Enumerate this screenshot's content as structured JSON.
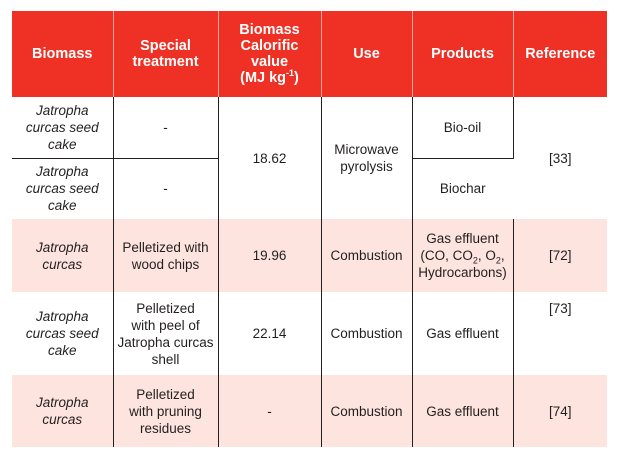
{
  "table": {
    "headers": {
      "biomass": "Biomass",
      "treatment_line1": "Special",
      "treatment_line2": "treatment",
      "cal_line1": "Biomass",
      "cal_line2": "Calorific",
      "cal_line3": "value",
      "cal_unit_prefix": "(MJ kg",
      "cal_unit_exp": "-1",
      "cal_unit_suffix": ")",
      "use": "Use",
      "products": "Products",
      "reference": "Reference"
    },
    "rows": [
      {
        "biomass_l1": "Jatropha",
        "biomass_l2": "curcas seed",
        "biomass_l3": "cake",
        "treatment": "-",
        "calorific": "18.62",
        "use_l1": "Microwave",
        "use_l2": "pyrolysis",
        "product": "Bio-oil",
        "reference": "[33]"
      },
      {
        "biomass_l1": "Jatropha",
        "biomass_l2": "curcas seed",
        "biomass_l3": "cake",
        "treatment": "-",
        "product": "Biochar"
      },
      {
        "biomass_l1": "Jatropha",
        "biomass_l2": "curcas",
        "treatment_l1": "Pelletized with",
        "treatment_l2": "wood chips",
        "calorific": "19.96",
        "use": "Combustion",
        "product_l1": "Gas effluent",
        "product_p1": "(CO, CO",
        "product_sub1": "2",
        "product_p2": ", O",
        "product_sub2": "2",
        "product_p3": ",",
        "product_l3": "Hydrocarbons)",
        "reference": "[72]"
      },
      {
        "biomass_l1": "Jatropha",
        "biomass_l2": "curcas seed",
        "biomass_l3": "cake",
        "treatment_l1": "Pelletized",
        "treatment_l2": "with peel of",
        "treatment_l3": "Jatropha curcas",
        "treatment_l4": "shell",
        "calorific": "22.14",
        "use": "Combustion",
        "product": "Gas effluent",
        "reference": "[73]"
      },
      {
        "biomass_l1": "Jatropha",
        "biomass_l2": "curcas",
        "treatment_l1": "Pelletized",
        "treatment_l2": "with pruning",
        "treatment_l3": "residues",
        "calorific": "-",
        "use": "Combustion",
        "product": "Gas effluent",
        "reference": "[74]"
      }
    ],
    "colors": {
      "header_bg": "#ee3124",
      "header_text": "#ffffff",
      "shaded_row_bg": "#fde4de",
      "text": "#231f20"
    }
  }
}
